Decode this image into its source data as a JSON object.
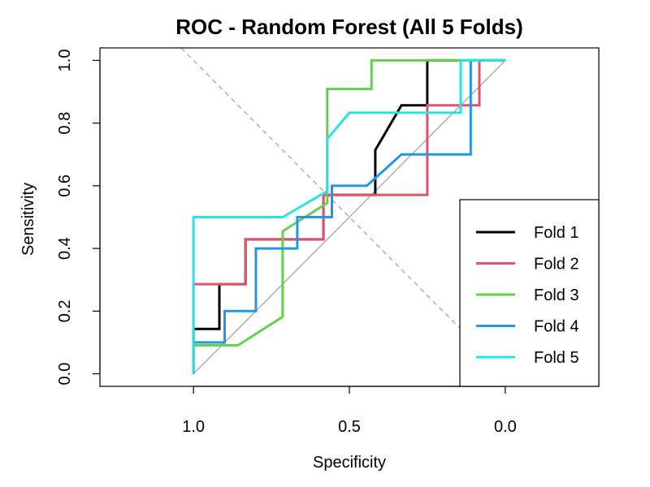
{
  "chart_data": {
    "type": "line",
    "title": "ROC - Random Forest (All 5 Folds)",
    "xlabel": "Specificity",
    "ylabel": "Sensitivity",
    "xlim": [
      1.3,
      -0.3
    ],
    "ylim": [
      -0.04,
      1.04
    ],
    "x_reversed": true,
    "x_ticks": [
      1.0,
      0.5,
      0.0
    ],
    "x_tick_labels": [
      "1.0",
      "0.5",
      "0.0"
    ],
    "y_ticks": [
      0.0,
      0.2,
      0.4,
      0.6,
      0.8,
      1.0
    ],
    "y_tick_labels": [
      "0.0",
      "0.2",
      "0.4",
      "0.6",
      "0.8",
      "1.0"
    ],
    "grid": false,
    "legend_position": "bottom-right",
    "reference_lines": [
      {
        "description": "diagonal",
        "points": [
          [
            1,
            0
          ],
          [
            0,
            1
          ]
        ],
        "color": "#aaaaaa",
        "dash": "solid"
      },
      {
        "description": "anti-diagonal",
        "points": [
          [
            1.04,
            1.04
          ],
          [
            -0.04,
            -0.04
          ]
        ],
        "color": "#aaaaaa",
        "dash": "dashed"
      }
    ],
    "series": [
      {
        "name": "Fold 1",
        "color": "#000000",
        "points": [
          [
            1.0,
            0.0
          ],
          [
            1.0,
            0.143
          ],
          [
            0.917,
            0.143
          ],
          [
            0.917,
            0.286
          ],
          [
            0.833,
            0.286
          ],
          [
            0.833,
            0.429
          ],
          [
            0.583,
            0.429
          ],
          [
            0.583,
            0.571
          ],
          [
            0.417,
            0.571
          ],
          [
            0.417,
            0.714
          ],
          [
            0.333,
            0.857
          ],
          [
            0.25,
            0.857
          ],
          [
            0.25,
            1.0
          ],
          [
            0.0,
            1.0
          ]
        ]
      },
      {
        "name": "Fold 2",
        "color": "#df536b",
        "points": [
          [
            1.0,
            0.0
          ],
          [
            1.0,
            0.286
          ],
          [
            0.833,
            0.286
          ],
          [
            0.833,
            0.429
          ],
          [
            0.583,
            0.429
          ],
          [
            0.583,
            0.571
          ],
          [
            0.25,
            0.571
          ],
          [
            0.25,
            0.857
          ],
          [
            0.083,
            0.857
          ],
          [
            0.083,
            1.0
          ],
          [
            0.0,
            1.0
          ]
        ]
      },
      {
        "name": "Fold 3",
        "color": "#61d04f",
        "points": [
          [
            1.0,
            0.0
          ],
          [
            1.0,
            0.091
          ],
          [
            0.857,
            0.091
          ],
          [
            0.714,
            0.182
          ],
          [
            0.714,
            0.455
          ],
          [
            0.571,
            0.545
          ],
          [
            0.571,
            0.909
          ],
          [
            0.429,
            0.909
          ],
          [
            0.429,
            1.0
          ],
          [
            0.0,
            1.0
          ]
        ]
      },
      {
        "name": "Fold 4",
        "color": "#2297e6",
        "points": [
          [
            1.0,
            0.0
          ],
          [
            1.0,
            0.1
          ],
          [
            0.9,
            0.1
          ],
          [
            0.9,
            0.2
          ],
          [
            0.8,
            0.2
          ],
          [
            0.8,
            0.4
          ],
          [
            0.667,
            0.4
          ],
          [
            0.667,
            0.5
          ],
          [
            0.556,
            0.5
          ],
          [
            0.556,
            0.6
          ],
          [
            0.444,
            0.6
          ],
          [
            0.333,
            0.7
          ],
          [
            0.111,
            0.7
          ],
          [
            0.111,
            1.0
          ],
          [
            0.0,
            1.0
          ]
        ]
      },
      {
        "name": "Fold 5",
        "color": "#28e2e5",
        "points": [
          [
            1.0,
            0.0
          ],
          [
            1.0,
            0.5
          ],
          [
            0.714,
            0.5
          ],
          [
            0.571,
            0.583
          ],
          [
            0.571,
            0.75
          ],
          [
            0.5,
            0.833
          ],
          [
            0.143,
            0.833
          ],
          [
            0.143,
            1.0
          ],
          [
            0.0,
            1.0
          ]
        ]
      }
    ]
  }
}
